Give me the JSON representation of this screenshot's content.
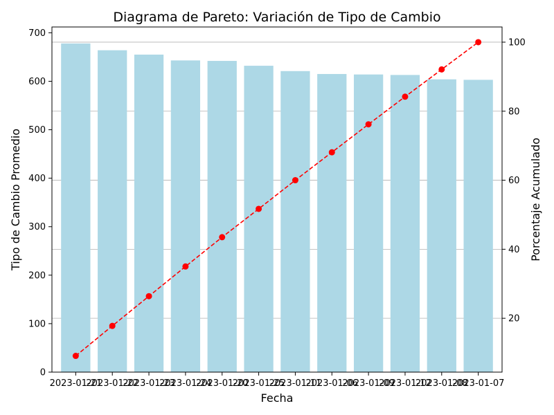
{
  "chart_data": {
    "type": "bar",
    "title": "Diagrama de Pareto: Variación de Tipo de Cambio",
    "xlabel": "Fecha",
    "ylabel": "Tipo de Cambio Promedio",
    "y2label": "Porcentaje Acumulado",
    "categories": [
      "2023-01-21",
      "2023-01-22",
      "2023-01-23",
      "2023-01-24",
      "2023-01-20",
      "2023-01-25",
      "2023-01-11",
      "2023-01-06",
      "2023-01-09",
      "2023-01-12",
      "2023-01-08",
      "2023-01-07"
    ],
    "series": [
      {
        "kind": "bar",
        "axis": "left",
        "color": "#add8e6",
        "values": [
          678,
          664,
          655,
          643,
          642,
          632,
          621,
          615,
          614,
          613,
          604,
          603
        ]
      },
      {
        "kind": "line",
        "axis": "right",
        "color": "#ff0000",
        "line_style": "dashed",
        "marker": "circle",
        "values": [
          9.1,
          17.8,
          26.4,
          35.0,
          43.5,
          51.7,
          60.0,
          68.1,
          76.2,
          84.2,
          92.1,
          100.0
        ]
      }
    ],
    "ylim": [
      0,
      712
    ],
    "y2lim": [
      4.4,
      104.4
    ],
    "yticks": [
      0,
      100,
      200,
      300,
      400,
      500,
      600,
      700
    ],
    "y2ticks": [
      20,
      40,
      60,
      80,
      100
    ],
    "grid": {
      "horizontal": true,
      "axis": "right"
    },
    "legend": "none"
  }
}
